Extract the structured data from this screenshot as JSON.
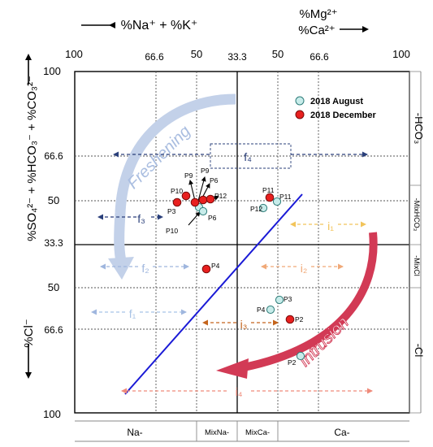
{
  "top_axis": {
    "left_label": "%Na⁺ + %K⁺",
    "right_label_1": "%Mg²⁺",
    "right_label_2": "%Ca²⁺",
    "ticks": [
      "100",
      "66.6",
      "50",
      "33.3",
      "50",
      "66.6",
      "100"
    ]
  },
  "left_axis": {
    "upper_label": "%SO₄²⁻ + %HCO₃⁻ + %CO₃²⁻",
    "lower_label": "%Cl⁻",
    "ticks": [
      "100",
      "66.6",
      "50",
      "33.3",
      "50",
      "66.6",
      "100"
    ]
  },
  "right_panel": {
    "labels": [
      "-HCO₃",
      "-MixHCO₃",
      "-MixCl",
      "-Cl"
    ]
  },
  "bottom_panel": {
    "labels": [
      "Na-",
      "MixNa-",
      "MixCa-",
      "Ca-"
    ]
  },
  "legend": {
    "items": [
      {
        "label": "2018 August",
        "color": "#c8ecea",
        "stroke": "#2e7d7a"
      },
      {
        "label": "2018 December",
        "color": "#e8201f",
        "stroke": "#7a0a0a"
      }
    ]
  },
  "process_labels": {
    "freshening": "Freshening",
    "intrusion": "Intrusion"
  },
  "flow_labels": {
    "f4": "f₄",
    "f3": "f₃",
    "f2": "f₂",
    "f1": "f₁",
    "i1": "i₁",
    "i2": "i₂",
    "i3": "i₃",
    "i4": "i₄"
  },
  "point_labels": {
    "aug_p12": "P12",
    "aug_p11": "P11",
    "dec_p11": "P11",
    "p9a": "P9",
    "p9b": "P9",
    "p10a": "P10",
    "p10b": "P10",
    "p6a": "P6",
    "p6b": "P6",
    "p12": "P12",
    "p3": "P3",
    "p4_dec": "P4",
    "p3_aug": "P3",
    "p4_aug": "P4",
    "p2_dec": "P2",
    "p2_aug": "P2"
  },
  "colors": {
    "august_fill": "#c8ecea",
    "december_fill": "#e8201f",
    "mixing_line": "#1a1ad6",
    "freshening_arrow": "#b8c8e4",
    "intrusion_arrow": "#d23a55"
  }
}
